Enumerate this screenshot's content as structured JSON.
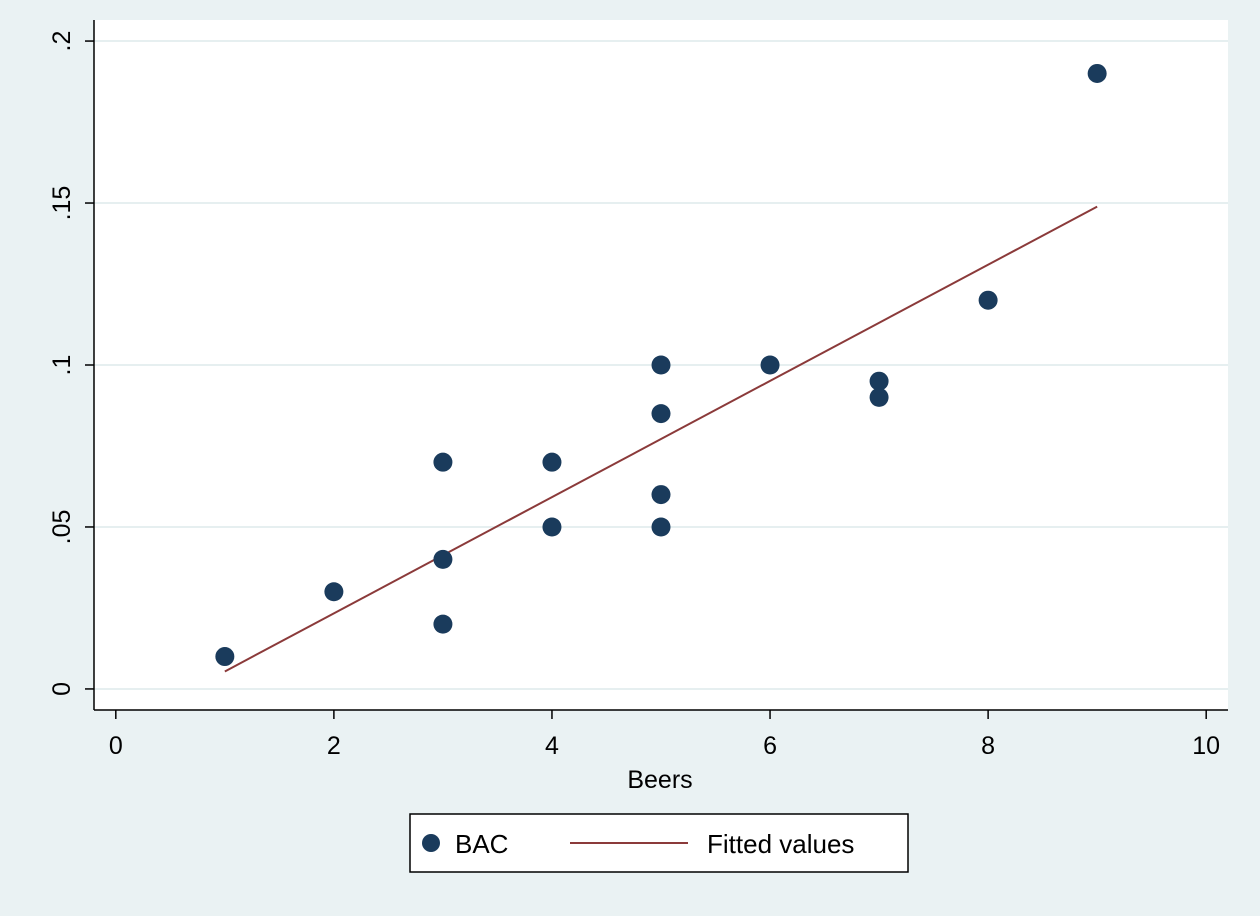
{
  "chart_data": {
    "type": "scatter",
    "title": "",
    "xlabel": "Beers",
    "ylabel": "",
    "xlim": [
      -0.2,
      10.2
    ],
    "ylim": [
      -0.0065,
      0.2065
    ],
    "x_ticks": [
      0,
      2,
      4,
      6,
      8,
      10
    ],
    "x_tick_labels": [
      "0",
      "2",
      "4",
      "6",
      "8",
      "10"
    ],
    "y_ticks": [
      0,
      0.05,
      0.1,
      0.15,
      0.2
    ],
    "y_tick_labels": [
      "0",
      ".05",
      ".1",
      ".15",
      ".2"
    ],
    "grid": "horizontal",
    "legend_position": "bottom",
    "colors": {
      "background": "#eaf2f3",
      "plot_background": "#ffffff",
      "marker": "#1a3b5c",
      "fit_line": "#8b3a3a",
      "grid": "#e6eff0"
    },
    "series": [
      {
        "name": "BAC",
        "kind": "scatter",
        "points": [
          {
            "x": 1,
            "y": 0.01
          },
          {
            "x": 2,
            "y": 0.03
          },
          {
            "x": 3,
            "y": 0.07
          },
          {
            "x": 3,
            "y": 0.04
          },
          {
            "x": 3,
            "y": 0.02
          },
          {
            "x": 4,
            "y": 0.07
          },
          {
            "x": 4,
            "y": 0.05
          },
          {
            "x": 5,
            "y": 0.1
          },
          {
            "x": 5,
            "y": 0.085
          },
          {
            "x": 5,
            "y": 0.06
          },
          {
            "x": 5,
            "y": 0.05
          },
          {
            "x": 6,
            "y": 0.1
          },
          {
            "x": 7,
            "y": 0.095
          },
          {
            "x": 7,
            "y": 0.09
          },
          {
            "x": 8,
            "y": 0.12
          },
          {
            "x": 9,
            "y": 0.19
          }
        ]
      },
      {
        "name": "Fitted values",
        "kind": "line",
        "points": [
          {
            "x": 1,
            "y": 0.0054
          },
          {
            "x": 9,
            "y": 0.1489
          }
        ]
      }
    ]
  }
}
